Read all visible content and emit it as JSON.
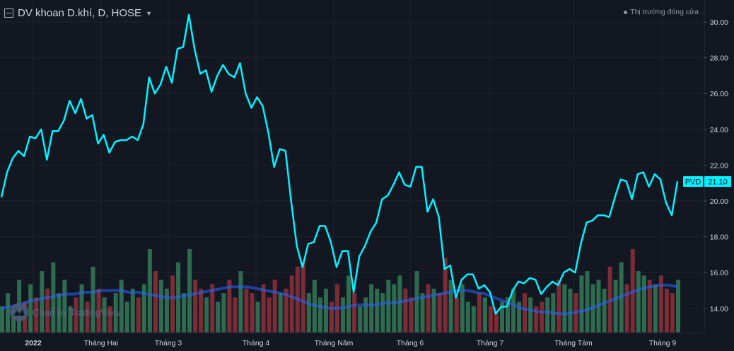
{
  "header": {
    "title": "DV khoan D.khí, D, HOSE",
    "market_status": "Thị trường đóng cửa",
    "watermark": "Chart by TradingView"
  },
  "colors": {
    "line": "#00f2ff",
    "up": "#2e6b4f",
    "down": "#7a2d35",
    "ma": "#2962ff"
  },
  "chart_data": {
    "type": "line",
    "title": "DV khoan D.khí, D, HOSE",
    "symbol": "PVD",
    "last_price_label": "21.10",
    "ylim": [
      12.8,
      30.6
    ],
    "y_ticks": [
      "30.00",
      "28.00",
      "26.00",
      "24.00",
      "22.00",
      "20.00",
      "18.00",
      "16.00",
      "14.00"
    ],
    "x_ticks": [
      {
        "label": "2022",
        "pos": 0.047
      },
      {
        "label": "Tháng Hai",
        "pos": 0.143
      },
      {
        "label": "Tháng 3",
        "pos": 0.238
      },
      {
        "label": "Tháng 4",
        "pos": 0.362
      },
      {
        "label": "Tháng Năm",
        "pos": 0.472
      },
      {
        "label": "Tháng 6",
        "pos": 0.58
      },
      {
        "label": "Tháng 7",
        "pos": 0.693
      },
      {
        "label": "Tháng Tám",
        "pos": 0.811
      },
      {
        "label": "Tháng 9",
        "pos": 0.937
      }
    ],
    "price": [
      20.2,
      21.6,
      22.4,
      22.8,
      22.5,
      23.6,
      23.5,
      24.0,
      22.3,
      23.9,
      23.9,
      24.5,
      25.6,
      24.9,
      25.7,
      24.6,
      24.8,
      23.2,
      23.7,
      22.7,
      23.3,
      23.4,
      23.4,
      23.6,
      23.4,
      24.3,
      26.9,
      26.0,
      26.5,
      27.5,
      26.6,
      28.5,
      28.6,
      30.4,
      28.5,
      27.1,
      27.3,
      26.1,
      27.0,
      27.6,
      27.1,
      26.9,
      27.7,
      26.0,
      25.2,
      25.8,
      25.3,
      23.8,
      21.9,
      22.9,
      22.8,
      20.0,
      17.5,
      16.3,
      17.6,
      17.7,
      18.6,
      18.6,
      17.7,
      16.3,
      17.2,
      17.2,
      14.9,
      16.9,
      17.5,
      18.3,
      18.8,
      20.1,
      20.3,
      20.9,
      21.6,
      20.9,
      20.8,
      21.9,
      21.9,
      19.4,
      20.1,
      19.1,
      16.2,
      16.4,
      14.6,
      15.6,
      15.9,
      15.9,
      15.1,
      15.3,
      14.9,
      13.7,
      14.1,
      14.1,
      15.0,
      15.5,
      15.4,
      15.7,
      15.6,
      14.8,
      15.2,
      15.5,
      15.3,
      16.0,
      16.2,
      16.0,
      17.6,
      18.8,
      18.9,
      19.2,
      19.2,
      19.1,
      20.2,
      21.2,
      21.1,
      20.1,
      21.5,
      21.6,
      20.8,
      21.5,
      21.2,
      19.9,
      19.2,
      21.1
    ],
    "volume": [
      30,
      45,
      25,
      60,
      35,
      55,
      40,
      70,
      50,
      80,
      45,
      60,
      30,
      40,
      55,
      35,
      75,
      50,
      40,
      30,
      45,
      60,
      35,
      50,
      40,
      55,
      95,
      70,
      60,
      50,
      65,
      80,
      45,
      95,
      60,
      50,
      40,
      55,
      35,
      45,
      60,
      40,
      70,
      50,
      45,
      35,
      55,
      40,
      60,
      45,
      50,
      65,
      75,
      80,
      45,
      60,
      40,
      50,
      35,
      55,
      40,
      65,
      45,
      30,
      40,
      55,
      50,
      45,
      60,
      55,
      65,
      50,
      40,
      70,
      45,
      55,
      50,
      45,
      85,
      60,
      40,
      55,
      35,
      30,
      45,
      40,
      30,
      25,
      35,
      40,
      50,
      35,
      45,
      40,
      30,
      35,
      40,
      45,
      60,
      55,
      50,
      45,
      65,
      70,
      55,
      60,
      50,
      75,
      60,
      80,
      55,
      95,
      70,
      65,
      60,
      55,
      65,
      50,
      45,
      60
    ],
    "ma": [
      14.0,
      14.1,
      14.2,
      14.4,
      14.5,
      14.6,
      14.7,
      14.8,
      14.8,
      14.9,
      14.9,
      15.0,
      15.0,
      15.0,
      14.9,
      14.9,
      14.8,
      14.7,
      14.6,
      14.6,
      14.7,
      14.8,
      14.9,
      15.0,
      15.1,
      15.2,
      15.2,
      15.2,
      15.1,
      15.0,
      14.9,
      14.8,
      14.6,
      14.4,
      14.2,
      14.1,
      14.0,
      14.0,
      14.1,
      14.2,
      14.2,
      14.2,
      14.3,
      14.3,
      14.4,
      14.5,
      14.6,
      14.7,
      14.8,
      14.9,
      15.0,
      15.0,
      14.9,
      14.8,
      14.6,
      14.4,
      14.2,
      14.0,
      13.9,
      13.8,
      13.8,
      13.7,
      13.7,
      13.8,
      13.9,
      14.1,
      14.3,
      14.5,
      14.7,
      14.9,
      15.1,
      15.2,
      15.3,
      15.3,
      15.2
    ]
  }
}
